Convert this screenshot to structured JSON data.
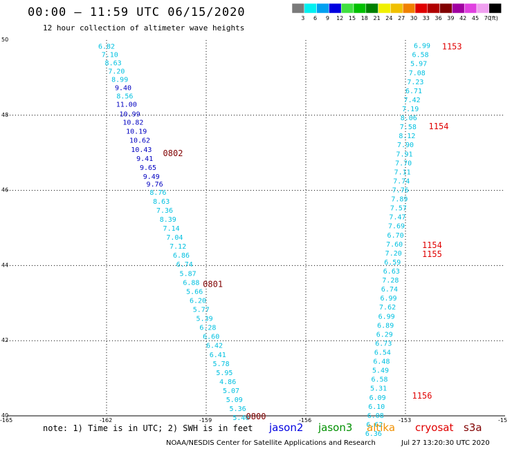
{
  "header": {
    "title": "00:00 – 11:59 UTC 06/15/2020",
    "subtitle": "12 hour collection of altimeter wave heights"
  },
  "color_legend": {
    "unit": "(ft)",
    "bins": [
      {
        "label": "3",
        "color": "#7a7a7a"
      },
      {
        "label": "6",
        "color": "#00f0f0"
      },
      {
        "label": "9",
        "color": "#00a0f0"
      },
      {
        "label": "12",
        "color": "#0000e0"
      },
      {
        "label": "15",
        "color": "#40e040"
      },
      {
        "label": "18",
        "color": "#00c000"
      },
      {
        "label": "21",
        "color": "#008000"
      },
      {
        "label": "24",
        "color": "#f0f000"
      },
      {
        "label": "27",
        "color": "#f0c000"
      },
      {
        "label": "30",
        "color": "#f08000"
      },
      {
        "label": "33",
        "color": "#e00000"
      },
      {
        "label": "36",
        "color": "#b00000"
      },
      {
        "label": "39",
        "color": "#800000"
      },
      {
        "label": "42",
        "color": "#a000a0"
      },
      {
        "label": "45",
        "color": "#e040e0"
      },
      {
        "label": "70",
        "color": "#f0a0f0"
      },
      {
        "label": "",
        "color": "#000000"
      }
    ]
  },
  "axes": {
    "lon_ticks": [
      "-165",
      "-162",
      "-159",
      "-156",
      "-153",
      "-15"
    ],
    "lat_ticks": [
      "50",
      "48",
      "46",
      "44",
      "42",
      "40"
    ],
    "lon_min": -165,
    "lon_max": -150,
    "lat_min": 40,
    "lat_max": 50
  },
  "colors": {
    "cyan_value": "#00c0e0",
    "blue_value": "#0000c0",
    "time_dark": "#800000",
    "time_red": "#e00000"
  },
  "pass_west": [
    {
      "lat": 49.84,
      "lon": -162.0,
      "v": "6.82",
      "c": "cyan"
    },
    {
      "lat": 49.62,
      "lon": -161.9,
      "v": "7.10",
      "c": "cyan"
    },
    {
      "lat": 49.4,
      "lon": -161.8,
      "v": "8.63",
      "c": "cyan"
    },
    {
      "lat": 49.18,
      "lon": -161.7,
      "v": "7.20",
      "c": "cyan"
    },
    {
      "lat": 48.96,
      "lon": -161.6,
      "v": "8.99",
      "c": "cyan"
    },
    {
      "lat": 48.74,
      "lon": -161.5,
      "v": "9.40",
      "c": "blue"
    },
    {
      "lat": 48.52,
      "lon": -161.45,
      "v": "8.56",
      "c": "cyan"
    },
    {
      "lat": 48.3,
      "lon": -161.4,
      "v": "11.00",
      "c": "blue"
    },
    {
      "lat": 48.04,
      "lon": -161.3,
      "v": "10.99",
      "c": "blue"
    },
    {
      "lat": 47.82,
      "lon": -161.2,
      "v": "10.82",
      "c": "blue"
    },
    {
      "lat": 47.58,
      "lon": -161.1,
      "v": "10.19",
      "c": "blue"
    },
    {
      "lat": 47.34,
      "lon": -161.0,
      "v": "10.62",
      "c": "blue"
    },
    {
      "lat": 47.1,
      "lon": -160.95,
      "v": "10.43",
      "c": "blue"
    },
    {
      "lat": 46.86,
      "lon": -160.85,
      "v": "9.41",
      "c": "blue"
    },
    {
      "lat": 46.62,
      "lon": -160.75,
      "v": "9.65",
      "c": "blue"
    },
    {
      "lat": 46.38,
      "lon": -160.65,
      "v": "9.49",
      "c": "blue"
    },
    {
      "lat": 46.18,
      "lon": -160.55,
      "v": "9.76",
      "c": "blue"
    },
    {
      "lat": 45.96,
      "lon": -160.45,
      "v": "8.76",
      "c": "cyan"
    },
    {
      "lat": 45.72,
      "lon": -160.35,
      "v": "8.63",
      "c": "cyan"
    },
    {
      "lat": 45.48,
      "lon": -160.25,
      "v": "7.36",
      "c": "cyan"
    },
    {
      "lat": 45.24,
      "lon": -160.15,
      "v": "8.39",
      "c": "cyan"
    },
    {
      "lat": 45.0,
      "lon": -160.05,
      "v": "7.14",
      "c": "cyan"
    },
    {
      "lat": 44.76,
      "lon": -159.95,
      "v": "7.04",
      "c": "cyan"
    },
    {
      "lat": 44.52,
      "lon": -159.85,
      "v": "7.12",
      "c": "cyan"
    },
    {
      "lat": 44.28,
      "lon": -159.75,
      "v": "6.86",
      "c": "cyan"
    },
    {
      "lat": 44.04,
      "lon": -159.65,
      "v": "6.74",
      "c": "cyan"
    },
    {
      "lat": 43.8,
      "lon": -159.55,
      "v": "5.87",
      "c": "cyan"
    },
    {
      "lat": 43.56,
      "lon": -159.45,
      "v": "6.88",
      "c": "cyan"
    },
    {
      "lat": 43.32,
      "lon": -159.35,
      "v": "5.66",
      "c": "cyan"
    },
    {
      "lat": 43.08,
      "lon": -159.25,
      "v": "6.20",
      "c": "cyan"
    },
    {
      "lat": 42.84,
      "lon": -159.15,
      "v": "5.77",
      "c": "cyan"
    },
    {
      "lat": 42.6,
      "lon": -159.05,
      "v": "5.39",
      "c": "cyan"
    },
    {
      "lat": 42.36,
      "lon": -158.95,
      "v": "6.28",
      "c": "cyan"
    },
    {
      "lat": 42.12,
      "lon": -158.85,
      "v": "6.60",
      "c": "cyan"
    },
    {
      "lat": 41.88,
      "lon": -158.75,
      "v": "6.42",
      "c": "cyan"
    },
    {
      "lat": 41.64,
      "lon": -158.65,
      "v": "6.41",
      "c": "cyan"
    },
    {
      "lat": 41.4,
      "lon": -158.55,
      "v": "5.78",
      "c": "cyan"
    },
    {
      "lat": 41.16,
      "lon": -158.45,
      "v": "5.95",
      "c": "cyan"
    },
    {
      "lat": 40.92,
      "lon": -158.35,
      "v": "4.86",
      "c": "cyan"
    },
    {
      "lat": 40.68,
      "lon": -158.25,
      "v": "5.07",
      "c": "cyan"
    },
    {
      "lat": 40.44,
      "lon": -158.15,
      "v": "5.09",
      "c": "cyan"
    },
    {
      "lat": 40.2,
      "lon": -158.05,
      "v": "5.36",
      "c": "cyan"
    },
    {
      "lat": 39.96,
      "lon": -157.95,
      "v": "5.40",
      "c": "cyan"
    }
  ],
  "pass_east": [
    {
      "lat": 49.86,
      "lon": -152.5,
      "v": "6.99",
      "c": "cyan"
    },
    {
      "lat": 49.62,
      "lon": -152.55,
      "v": "6.58",
      "c": "cyan"
    },
    {
      "lat": 49.38,
      "lon": -152.6,
      "v": "5.97",
      "c": "cyan"
    },
    {
      "lat": 49.14,
      "lon": -152.65,
      "v": "7.08",
      "c": "cyan"
    },
    {
      "lat": 48.9,
      "lon": -152.7,
      "v": "7.23",
      "c": "cyan"
    },
    {
      "lat": 48.66,
      "lon": -152.75,
      "v": "6.71",
      "c": "cyan"
    },
    {
      "lat": 48.42,
      "lon": -152.8,
      "v": "7.42",
      "c": "cyan"
    },
    {
      "lat": 48.18,
      "lon": -152.85,
      "v": "7.19",
      "c": "cyan"
    },
    {
      "lat": 47.94,
      "lon": -152.9,
      "v": "8.06",
      "c": "cyan"
    },
    {
      "lat": 47.7,
      "lon": -152.92,
      "v": "7.58",
      "c": "cyan"
    },
    {
      "lat": 47.46,
      "lon": -152.95,
      "v": "8.12",
      "c": "cyan"
    },
    {
      "lat": 47.22,
      "lon": -153.0,
      "v": "7.90",
      "c": "cyan"
    },
    {
      "lat": 46.98,
      "lon": -153.03,
      "v": "7.91",
      "c": "cyan"
    },
    {
      "lat": 46.74,
      "lon": -153.06,
      "v": "7.70",
      "c": "cyan"
    },
    {
      "lat": 46.5,
      "lon": -153.09,
      "v": "7.11",
      "c": "cyan"
    },
    {
      "lat": 46.26,
      "lon": -153.12,
      "v": "7.74",
      "c": "cyan"
    },
    {
      "lat": 46.02,
      "lon": -153.15,
      "v": "7.76",
      "c": "cyan"
    },
    {
      "lat": 45.78,
      "lon": -153.18,
      "v": "7.89",
      "c": "cyan"
    },
    {
      "lat": 45.54,
      "lon": -153.21,
      "v": "7.57",
      "c": "cyan"
    },
    {
      "lat": 45.3,
      "lon": -153.24,
      "v": "7.47",
      "c": "cyan"
    },
    {
      "lat": 45.06,
      "lon": -153.27,
      "v": "7.69",
      "c": "cyan"
    },
    {
      "lat": 44.82,
      "lon": -153.3,
      "v": "6.70",
      "c": "cyan"
    },
    {
      "lat": 44.58,
      "lon": -153.33,
      "v": "7.60",
      "c": "cyan"
    },
    {
      "lat": 44.34,
      "lon": -153.36,
      "v": "7.20",
      "c": "cyan"
    },
    {
      "lat": 44.1,
      "lon": -153.39,
      "v": "6.59",
      "c": "cyan"
    },
    {
      "lat": 43.86,
      "lon": -153.42,
      "v": "6.63",
      "c": "cyan"
    },
    {
      "lat": 43.62,
      "lon": -153.45,
      "v": "7.28",
      "c": "cyan"
    },
    {
      "lat": 43.38,
      "lon": -153.48,
      "v": "6.74",
      "c": "cyan"
    },
    {
      "lat": 43.14,
      "lon": -153.51,
      "v": "6.99",
      "c": "cyan"
    },
    {
      "lat": 42.9,
      "lon": -153.54,
      "v": "7.62",
      "c": "cyan"
    },
    {
      "lat": 42.66,
      "lon": -153.57,
      "v": "6.99",
      "c": "cyan"
    },
    {
      "lat": 42.42,
      "lon": -153.6,
      "v": "6.89",
      "c": "cyan"
    },
    {
      "lat": 42.18,
      "lon": -153.63,
      "v": "6.29",
      "c": "cyan"
    },
    {
      "lat": 41.94,
      "lon": -153.66,
      "v": "6.73",
      "c": "cyan"
    },
    {
      "lat": 41.7,
      "lon": -153.69,
      "v": "6.54",
      "c": "cyan"
    },
    {
      "lat": 41.46,
      "lon": -153.72,
      "v": "6.48",
      "c": "cyan"
    },
    {
      "lat": 41.22,
      "lon": -153.75,
      "v": "5.49",
      "c": "cyan"
    },
    {
      "lat": 40.98,
      "lon": -153.78,
      "v": "6.58",
      "c": "cyan"
    },
    {
      "lat": 40.74,
      "lon": -153.81,
      "v": "5.31",
      "c": "cyan"
    },
    {
      "lat": 40.5,
      "lon": -153.84,
      "v": "6.09",
      "c": "cyan"
    },
    {
      "lat": 40.26,
      "lon": -153.87,
      "v": "6.10",
      "c": "cyan"
    },
    {
      "lat": 40.02,
      "lon": -153.9,
      "v": "6.08",
      "c": "cyan"
    },
    {
      "lat": 39.78,
      "lon": -153.93,
      "v": "6.62",
      "c": "cyan"
    },
    {
      "lat": 39.54,
      "lon": -153.96,
      "v": "6.36",
      "c": "cyan"
    }
  ],
  "time_labels": [
    {
      "lat": 49.84,
      "lon": -151.6,
      "v": "1153",
      "c": "red"
    },
    {
      "lat": 47.72,
      "lon": -152.0,
      "v": "1154",
      "c": "red"
    },
    {
      "lat": 47.0,
      "lon": -160.0,
      "v": "0802",
      "c": "dark"
    },
    {
      "lat": 44.56,
      "lon": -152.2,
      "v": "1154",
      "c": "red"
    },
    {
      "lat": 44.32,
      "lon": -152.2,
      "v": "1155",
      "c": "red"
    },
    {
      "lat": 43.52,
      "lon": -158.8,
      "v": "0801",
      "c": "dark"
    },
    {
      "lat": 40.55,
      "lon": -152.5,
      "v": "1156",
      "c": "red"
    },
    {
      "lat": 40.0,
      "lon": -157.5,
      "v": "0800",
      "c": "dark"
    }
  ],
  "footer": {
    "note": "note: 1) Time is in UTC; 2) SWH is in feet",
    "satellites": [
      {
        "name": "jason2",
        "color": "#0000e0"
      },
      {
        "name": "jason3",
        "color": "#009000"
      },
      {
        "name": "altika",
        "color": "#f09000"
      },
      {
        "name": "cryosat",
        "color": "#e00000"
      },
      {
        "name": "s3a",
        "color": "#800000"
      }
    ],
    "credit": "NOAA/NESDIS Center for Satellite Applications and Research",
    "timestamp": "Jul 27 13:20:30 UTC 2020"
  }
}
